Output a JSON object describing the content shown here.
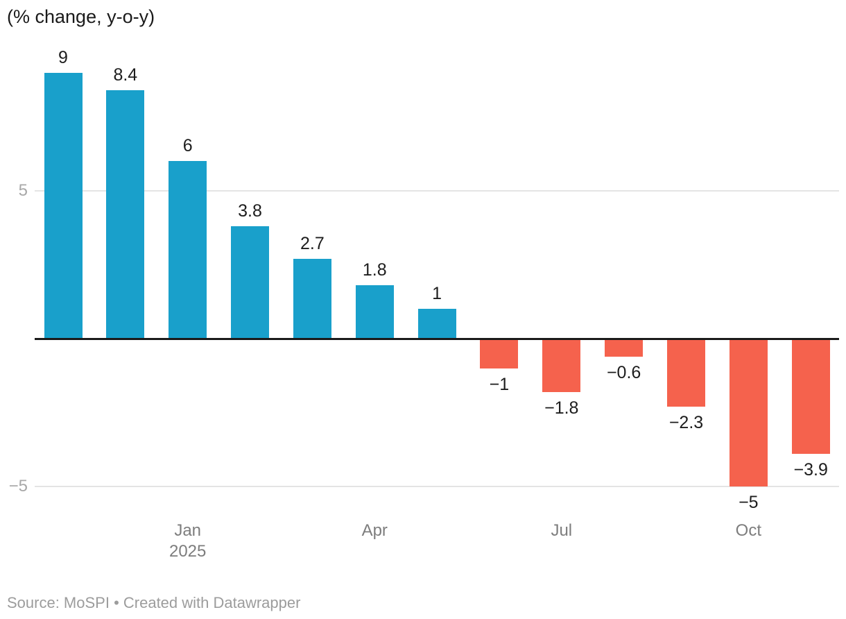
{
  "header": {
    "title": "(% change, y-o-y)"
  },
  "footer": {
    "text": "Source: MoSPI • Created with Datawrapper"
  },
  "colors": {
    "positive_bar": "#19a0cb",
    "negative_bar": "#f5624d",
    "gridline": "#e4e4e4",
    "zero_line": "#1a1a1a",
    "y_tick_label": "#a8a8a8",
    "x_tick_label": "#7d7d7d",
    "value_label": "#1d1d1d",
    "title_text": "#1a1a1a",
    "footer_text": "#9c9c9c",
    "background": "#ffffff"
  },
  "chart_data": {
    "type": "bar",
    "title": "(% change, y-o-y)",
    "xlabel": "",
    "ylabel": "% change, y-o-y",
    "ylim": [
      -6,
      9.6
    ],
    "grid": "horizontal gridlines at 5 and -5, black baseline at 0",
    "legend": "none",
    "baseline": 0,
    "y_gridlines": [
      {
        "value": 5,
        "label": "5"
      },
      {
        "value": -5,
        "label": "−5"
      }
    ],
    "x_tick_rows": [
      "month",
      "year"
    ],
    "bars": [
      {
        "value": 9,
        "label": "9"
      },
      {
        "value": 8.4,
        "label": "8.4"
      },
      {
        "value": 6,
        "label": "6",
        "tick": "Jan",
        "tick2": "2025"
      },
      {
        "value": 3.8,
        "label": "3.8"
      },
      {
        "value": 2.7,
        "label": "2.7"
      },
      {
        "value": 1.8,
        "label": "1.8",
        "tick": "Apr"
      },
      {
        "value": 1,
        "label": "1"
      },
      {
        "value": -1,
        "label": "−1"
      },
      {
        "value": -1.8,
        "label": "−1.8",
        "tick": "Jul"
      },
      {
        "value": -0.6,
        "label": "−0.6"
      },
      {
        "value": -2.3,
        "label": "−2.3"
      },
      {
        "value": -5,
        "label": "−5",
        "tick": "Oct"
      },
      {
        "value": -3.9,
        "label": "−3.9"
      }
    ]
  }
}
